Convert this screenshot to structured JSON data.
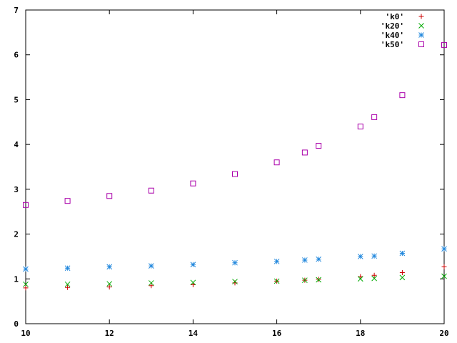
{
  "chart_data": {
    "type": "scatter",
    "xlim": [
      10,
      20
    ],
    "ylim": [
      0,
      7
    ],
    "xticks": [
      10,
      12,
      14,
      16,
      18,
      20
    ],
    "yticks": [
      0,
      1,
      2,
      3,
      4,
      5,
      6,
      7
    ],
    "grid": false,
    "legend_position": "top-right",
    "series": [
      {
        "name": "'k0'",
        "marker": "plus",
        "color": "#cc0000",
        "points": [
          [
            10,
            0.8
          ],
          [
            11,
            0.81
          ],
          [
            12,
            0.82
          ],
          [
            13,
            0.85
          ],
          [
            14,
            0.87
          ],
          [
            15,
            0.91
          ],
          [
            16,
            0.95
          ],
          [
            16.67,
            0.97
          ],
          [
            17,
            0.99
          ],
          [
            18,
            1.05
          ],
          [
            18.33,
            1.08
          ],
          [
            19,
            1.14
          ],
          [
            20,
            1.27
          ]
        ]
      },
      {
        "name": "'k20'",
        "marker": "cross",
        "color": "#00aa00",
        "points": [
          [
            10,
            0.88
          ],
          [
            11,
            0.88
          ],
          [
            12,
            0.89
          ],
          [
            13,
            0.91
          ],
          [
            14,
            0.92
          ],
          [
            15,
            0.94
          ],
          [
            16,
            0.95
          ],
          [
            16.67,
            0.97
          ],
          [
            17,
            0.98
          ],
          [
            18,
            1.0
          ],
          [
            18.33,
            1.01
          ],
          [
            19,
            1.03
          ],
          [
            20,
            1.06
          ]
        ]
      },
      {
        "name": "'k40'",
        "marker": "star",
        "color": "#2288dd",
        "points": [
          [
            10,
            1.22
          ],
          [
            11,
            1.24
          ],
          [
            12,
            1.27
          ],
          [
            13,
            1.29
          ],
          [
            14,
            1.32
          ],
          [
            15,
            1.36
          ],
          [
            16,
            1.39
          ],
          [
            16.67,
            1.42
          ],
          [
            17,
            1.44
          ],
          [
            18,
            1.5
          ],
          [
            18.33,
            1.51
          ],
          [
            19,
            1.57
          ],
          [
            20,
            1.67
          ]
        ]
      },
      {
        "name": "'k50'",
        "marker": "square",
        "color": "#aa00aa",
        "points": [
          [
            10,
            2.65
          ],
          [
            11,
            2.74
          ],
          [
            12,
            2.85
          ],
          [
            13,
            2.97
          ],
          [
            14,
            3.13
          ],
          [
            15,
            3.34
          ],
          [
            16,
            3.6
          ],
          [
            16.67,
            3.82
          ],
          [
            17,
            3.97
          ],
          [
            18,
            4.4
          ],
          [
            18.33,
            4.61
          ],
          [
            19,
            5.1
          ],
          [
            20,
            6.22
          ]
        ]
      }
    ]
  }
}
